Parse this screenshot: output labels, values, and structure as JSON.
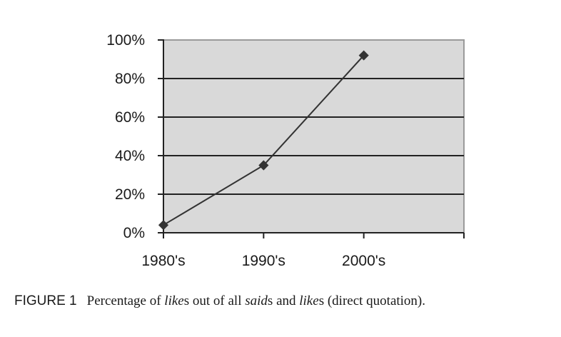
{
  "chart_data": {
    "type": "line",
    "title": "",
    "xlabel": "",
    "ylabel": "",
    "categories": [
      "1980's",
      "1990's",
      "2000's"
    ],
    "series": [
      {
        "name": "Percentage of likes",
        "values": [
          4,
          35,
          92
        ],
        "color": "#333333",
        "marker": "diamond"
      }
    ],
    "ylim": [
      0,
      100
    ],
    "yticks": [
      "0%",
      "20%",
      "40%",
      "60%",
      "80%",
      "100%"
    ],
    "grid": true,
    "legend": "none",
    "plot_background": "#d9d9d9"
  },
  "caption": {
    "label": "FIGURE 1",
    "parts": [
      {
        "text": "Percentage of ",
        "italic": false
      },
      {
        "text": "like",
        "italic": true
      },
      {
        "text": "s out of all ",
        "italic": false
      },
      {
        "text": "said",
        "italic": true
      },
      {
        "text": "s and ",
        "italic": false
      },
      {
        "text": "like",
        "italic": true
      },
      {
        "text": "s (direct quotation).",
        "italic": false
      }
    ]
  }
}
